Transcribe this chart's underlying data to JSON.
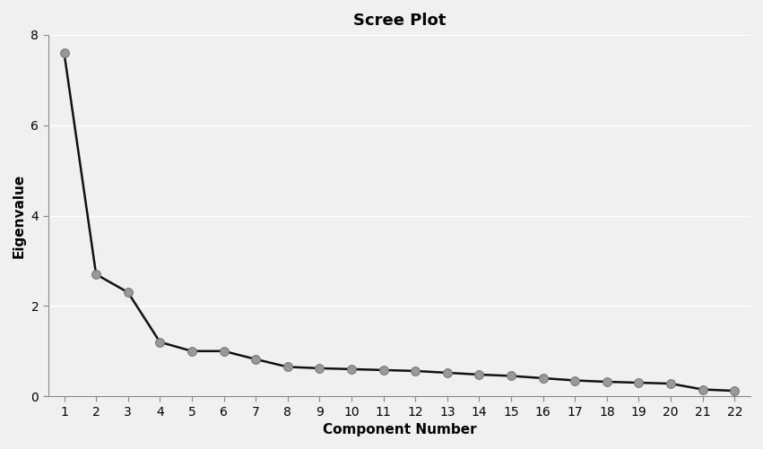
{
  "title": "Scree Plot",
  "xlabel": "Component Number",
  "ylabel": "Eigenvalue",
  "components": [
    1,
    2,
    3,
    4,
    5,
    6,
    7,
    8,
    9,
    10,
    11,
    12,
    13,
    14,
    15,
    16,
    17,
    18,
    19,
    20,
    21,
    22
  ],
  "eigenvalues": [
    7.6,
    2.7,
    2.3,
    1.2,
    1.0,
    1.0,
    0.82,
    0.65,
    0.62,
    0.6,
    0.58,
    0.56,
    0.52,
    0.48,
    0.45,
    0.4,
    0.35,
    0.32,
    0.3,
    0.28,
    0.15,
    0.12
  ],
  "line_color": "#111111",
  "marker_color": "#999999",
  "marker_edge_color": "#777777",
  "background_color": "#f0f0f0",
  "plot_bg_color": "#f0f0f0",
  "grid_color": "#ffffff",
  "ylim": [
    0,
    8
  ],
  "yticks": [
    0,
    2,
    4,
    6,
    8
  ],
  "title_fontsize": 13,
  "label_fontsize": 11,
  "tick_fontsize": 10,
  "marker_size": 7,
  "line_width": 1.8
}
